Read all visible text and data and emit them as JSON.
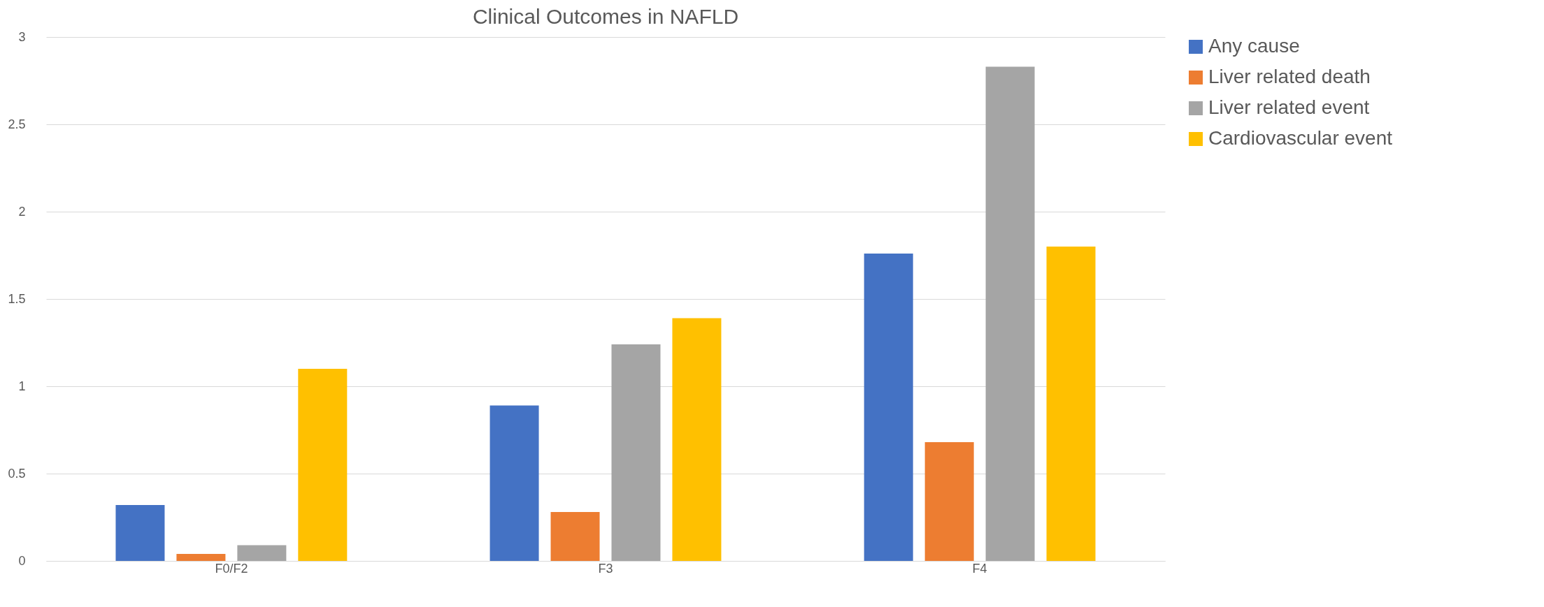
{
  "chart_data": {
    "type": "bar",
    "title": "Clinical Outcomes in NAFLD",
    "categories": [
      "F0/F2",
      "F3",
      "F4"
    ],
    "series": [
      {
        "name": "Any cause",
        "color": "#4472c4",
        "values": [
          0.32,
          0.89,
          1.76
        ]
      },
      {
        "name": "Liver related death",
        "color": "#ed7d31",
        "values": [
          0.04,
          0.28,
          0.68
        ]
      },
      {
        "name": "Liver related event",
        "color": "#a5a5a5",
        "values": [
          0.09,
          1.24,
          2.83
        ]
      },
      {
        "name": "Cardiovascular event",
        "color": "#ffc000",
        "values": [
          1.1,
          1.39,
          1.8
        ]
      }
    ],
    "ylim": [
      0,
      3
    ],
    "yticks": [
      0,
      0.5,
      1,
      1.5,
      2,
      2.5,
      3
    ],
    "grid": "y",
    "legend": "right"
  }
}
